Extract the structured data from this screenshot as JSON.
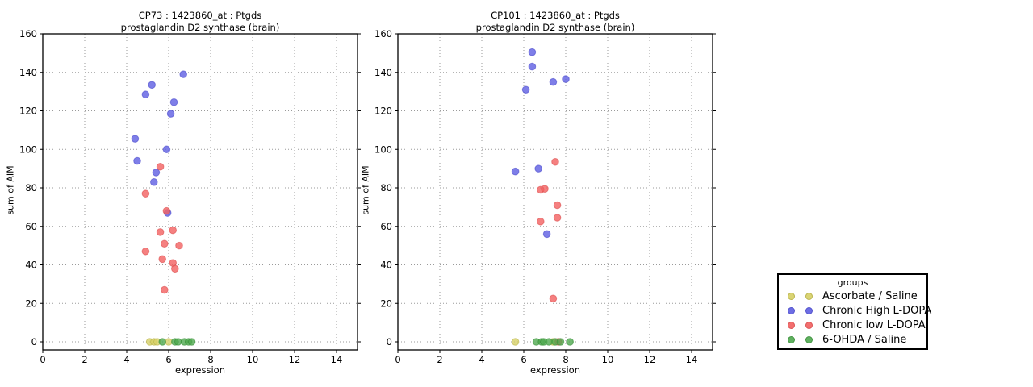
{
  "colors": {
    "yellow": {
      "fill": "#d6d066",
      "edge": "#b4ae3e"
    },
    "blue": {
      "fill": "#5e5ee2",
      "edge": "#4242c8"
    },
    "red": {
      "fill": "#f26060",
      "edge": "#d84444"
    },
    "green": {
      "fill": "#4fa94f",
      "edge": "#2f8a2f"
    }
  },
  "legend": {
    "title": "groups",
    "entries": [
      {
        "label": "Ascorbate / Saline",
        "color": "yellow"
      },
      {
        "label": "Chronic High L-DOPA",
        "color": "blue"
      },
      {
        "label": "Chronic low L-DOPA",
        "color": "red"
      },
      {
        "label": "6-OHDA / Saline",
        "color": "green"
      }
    ]
  },
  "chart_data": [
    {
      "type": "scatter",
      "title": "CP73 : 1423860_at : Ptgds",
      "subtitle": "prostaglandin D2 synthase (brain)",
      "xlabel": "expression",
      "ylabel": "sum of AIM",
      "xlim": [
        0,
        15
      ],
      "ylim": [
        0,
        160
      ],
      "xticks": [
        0,
        2,
        4,
        6,
        8,
        10,
        12,
        14
      ],
      "yticks": [
        0,
        20,
        40,
        60,
        80,
        100,
        120,
        140,
        160
      ],
      "grid": "dotted",
      "series": [
        {
          "name": "Ascorbate / Saline",
          "color": "yellow",
          "points": [
            [
              5.1,
              0
            ],
            [
              5.3,
              0
            ],
            [
              5.45,
              0
            ],
            [
              6.0,
              0
            ]
          ]
        },
        {
          "name": "Chronic High L-DOPA",
          "color": "blue",
          "points": [
            [
              4.4,
              105.5
            ],
            [
              4.5,
              94
            ],
            [
              4.9,
              128.5
            ],
            [
              5.2,
              133.5
            ],
            [
              5.3,
              83
            ],
            [
              5.4,
              88
            ],
            [
              5.9,
              100
            ],
            [
              5.95,
              67
            ],
            [
              6.1,
              118.5
            ],
            [
              6.25,
              124.5
            ],
            [
              6.7,
              139
            ]
          ]
        },
        {
          "name": "Chronic low L-DOPA",
          "color": "red",
          "points": [
            [
              4.9,
              77
            ],
            [
              4.9,
              47
            ],
            [
              5.6,
              91
            ],
            [
              5.6,
              57
            ],
            [
              5.7,
              43
            ],
            [
              5.8,
              51
            ],
            [
              5.8,
              27
            ],
            [
              5.9,
              68
            ],
            [
              6.2,
              58
            ],
            [
              6.2,
              41
            ],
            [
              6.3,
              38
            ],
            [
              6.5,
              50
            ]
          ]
        },
        {
          "name": "6-OHDA / Saline",
          "color": "green",
          "points": [
            [
              5.7,
              0
            ],
            [
              6.3,
              0
            ],
            [
              6.45,
              0
            ],
            [
              6.75,
              0
            ],
            [
              6.95,
              0
            ],
            [
              7.1,
              0
            ]
          ]
        }
      ]
    },
    {
      "type": "scatter",
      "title": "CP101 : 1423860_at : Ptgds",
      "subtitle": "prostaglandin D2 synthase (brain)",
      "xlabel": "expression",
      "ylabel": "sum of AIM",
      "xlim": [
        0,
        15
      ],
      "ylim": [
        0,
        160
      ],
      "xticks": [
        0,
        2,
        4,
        6,
        8,
        10,
        12,
        14
      ],
      "yticks": [
        0,
        20,
        40,
        60,
        80,
        100,
        120,
        140,
        160
      ],
      "grid": "dotted",
      "series": [
        {
          "name": "Ascorbate / Saline",
          "color": "yellow",
          "points": [
            [
              5.6,
              0
            ],
            [
              7.4,
              0
            ]
          ]
        },
        {
          "name": "Chronic High L-DOPA",
          "color": "blue",
          "points": [
            [
              5.6,
              88.5
            ],
            [
              6.1,
              131
            ],
            [
              6.4,
              150.5
            ],
            [
              6.4,
              143
            ],
            [
              6.7,
              90
            ],
            [
              7.1,
              56
            ],
            [
              7.4,
              135
            ],
            [
              8.0,
              136.5
            ]
          ]
        },
        {
          "name": "Chronic low L-DOPA",
          "color": "red",
          "points": [
            [
              6.8,
              79
            ],
            [
              6.8,
              62.5
            ],
            [
              7.0,
              79.5
            ],
            [
              7.4,
              22.5
            ],
            [
              7.5,
              93.5
            ],
            [
              7.6,
              71
            ],
            [
              7.6,
              64.5
            ],
            [
              7.65,
              0
            ]
          ]
        },
        {
          "name": "6-OHDA / Saline",
          "color": "green",
          "points": [
            [
              6.6,
              0
            ],
            [
              6.85,
              0
            ],
            [
              6.95,
              0
            ],
            [
              7.2,
              0
            ],
            [
              7.5,
              0
            ],
            [
              7.75,
              0
            ],
            [
              8.2,
              0
            ]
          ]
        }
      ]
    }
  ]
}
